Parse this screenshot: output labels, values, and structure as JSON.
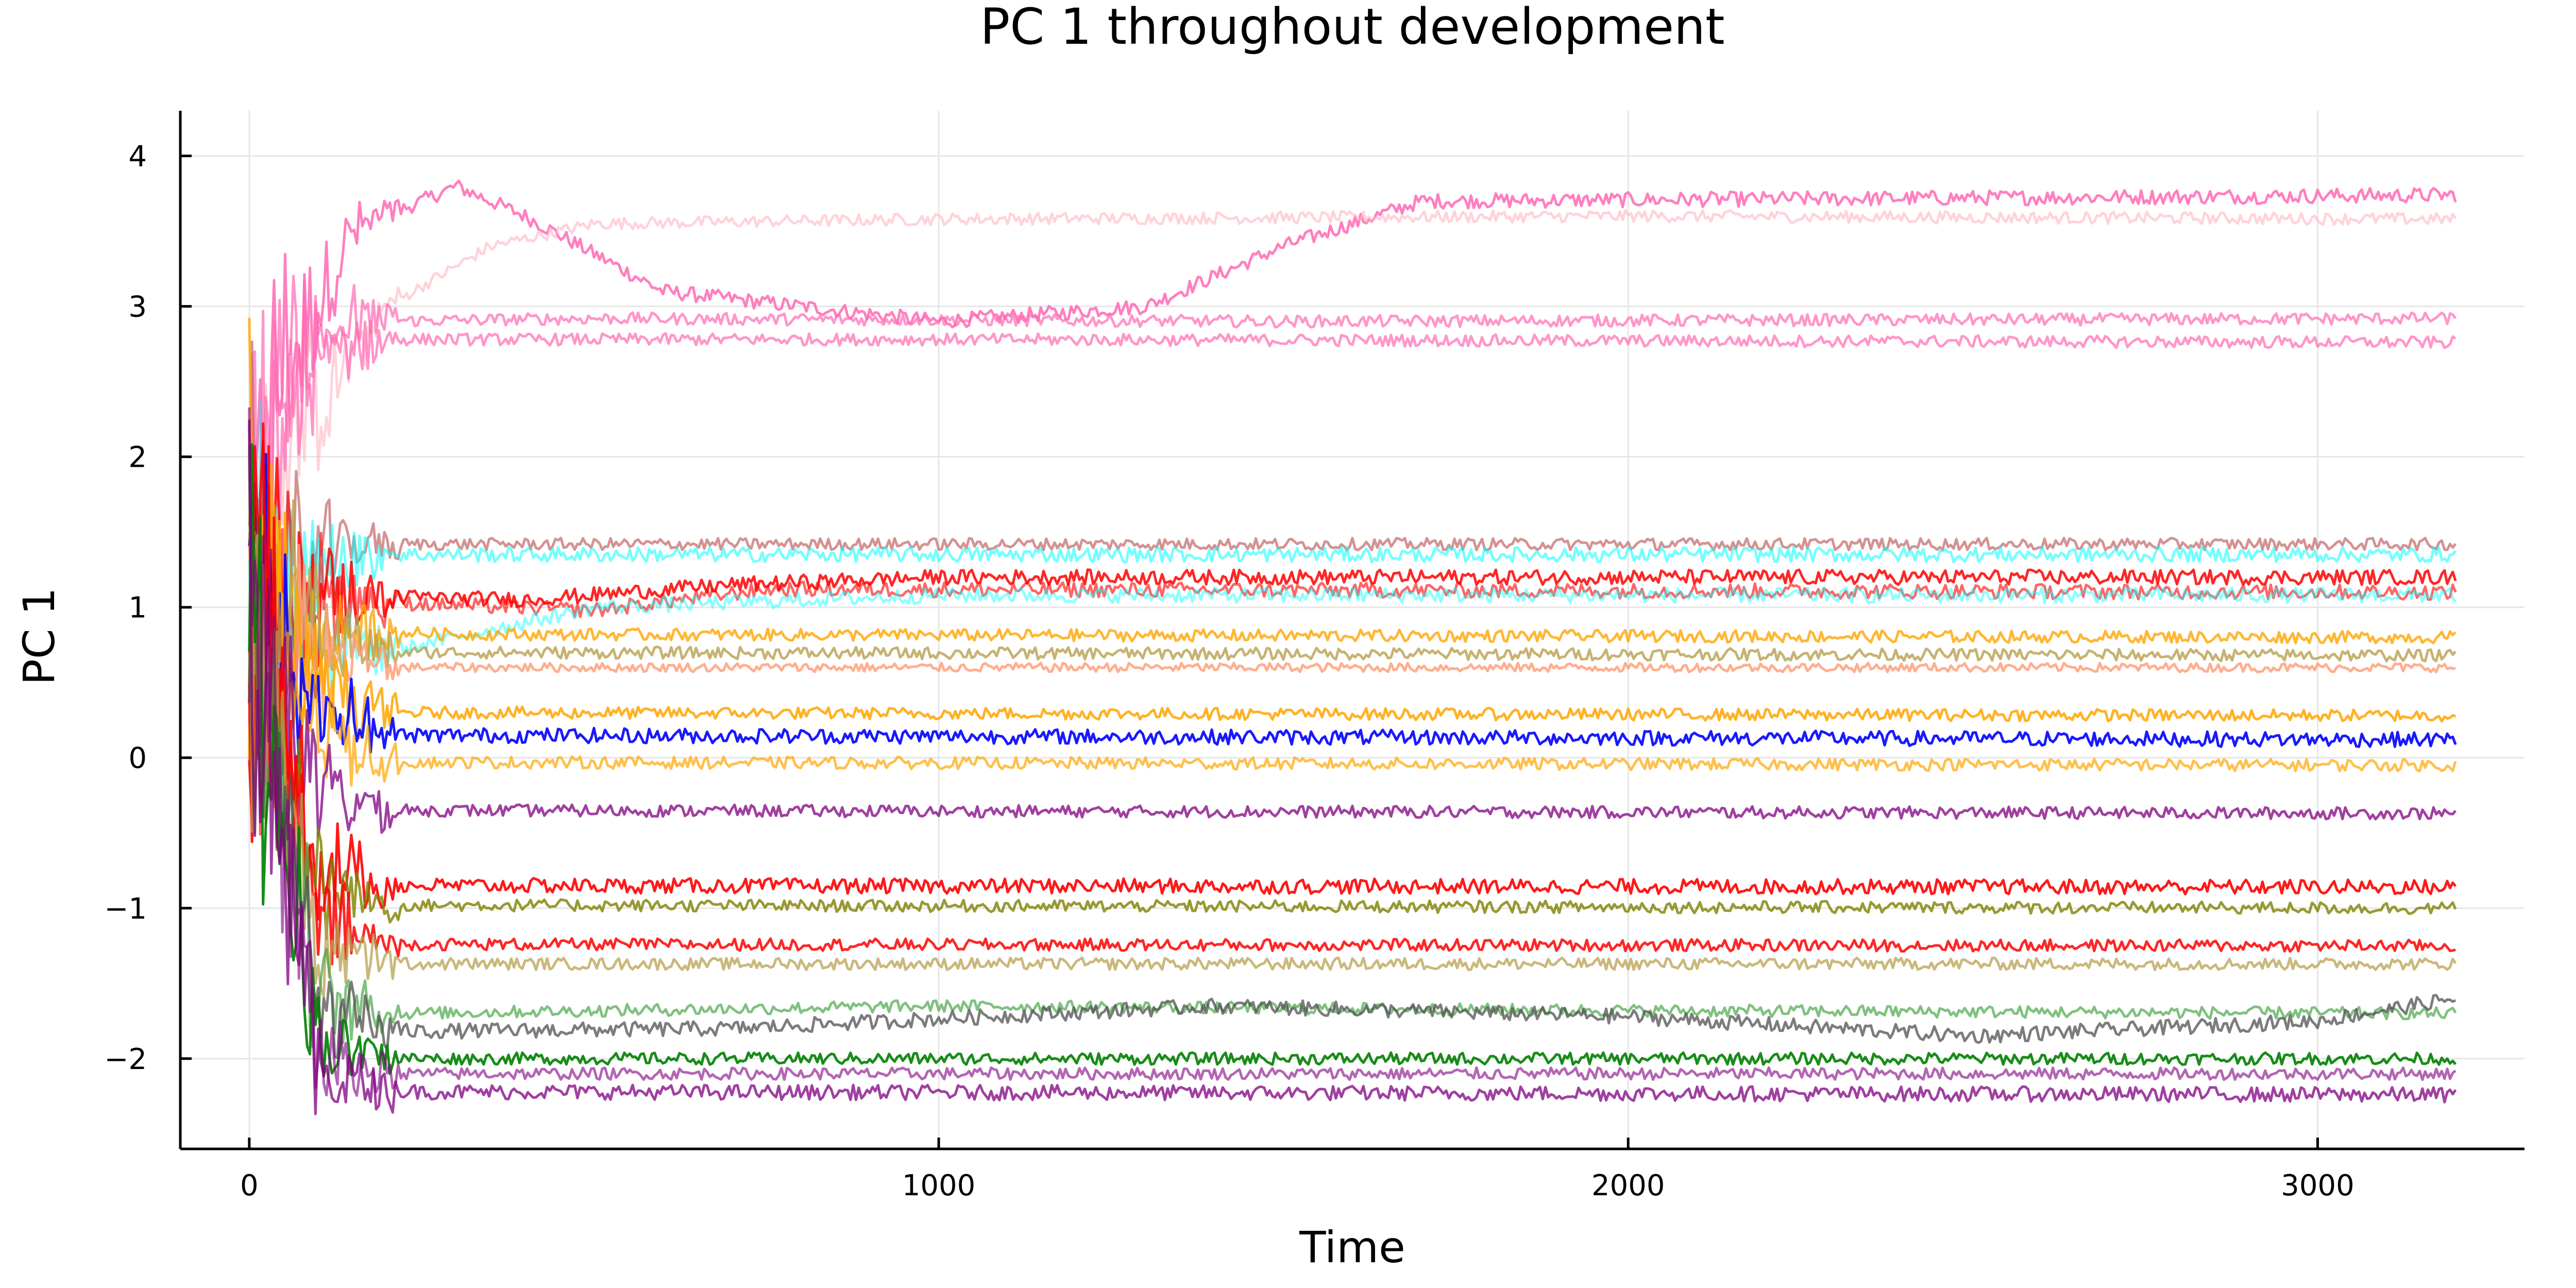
{
  "chart_data": {
    "type": "line",
    "title": "PC 1 throughout development",
    "xlabel": "Time",
    "ylabel": "PC 1",
    "xlim": [
      -100,
      3300
    ],
    "ylim": [
      -2.6,
      4.3
    ],
    "xticks": [
      0,
      1000,
      2000,
      3000
    ],
    "xtick_labels": [
      "0",
      "1000",
      "2000",
      "3000"
    ],
    "yticks": [
      -2,
      -1,
      0,
      1,
      2,
      3,
      4
    ],
    "ytick_labels": [
      "−2",
      "−1",
      "0",
      "1",
      "2",
      "3",
      "4"
    ],
    "grid": true,
    "legend": "none",
    "x_end": 3200,
    "series": [
      {
        "color": "#ff69b4",
        "opacity": 0.85,
        "noise": 0.05,
        "points": [
          [
            0,
            1.0
          ],
          [
            40,
            2.5
          ],
          [
            150,
            3.5
          ],
          [
            300,
            3.8
          ],
          [
            400,
            3.6
          ],
          [
            600,
            3.1
          ],
          [
            1000,
            2.9
          ],
          [
            1300,
            3.0
          ],
          [
            1500,
            3.4
          ],
          [
            1700,
            3.7
          ],
          [
            3200,
            3.74
          ]
        ]
      },
      {
        "color": "#ffb6c1",
        "opacity": 0.6,
        "noise": 0.04,
        "points": [
          [
            0,
            1.0
          ],
          [
            50,
            2.0
          ],
          [
            200,
            3.0
          ],
          [
            350,
            3.4
          ],
          [
            500,
            3.55
          ],
          [
            1000,
            3.58
          ],
          [
            2000,
            3.6
          ],
          [
            3200,
            3.58
          ]
        ]
      },
      {
        "color": "#ff69b4",
        "opacity": 0.7,
        "noise": 0.04,
        "points": [
          [
            0,
            1.0
          ],
          [
            60,
            2.6
          ],
          [
            150,
            2.9
          ],
          [
            500,
            2.92
          ],
          [
            1500,
            2.9
          ],
          [
            3200,
            2.92
          ]
        ]
      },
      {
        "color": "#ff69b4",
        "opacity": 0.7,
        "noise": 0.04,
        "points": [
          [
            0,
            1.0
          ],
          [
            60,
            2.5
          ],
          [
            150,
            2.78
          ],
          [
            1000,
            2.78
          ],
          [
            3200,
            2.76
          ]
        ]
      },
      {
        "color": "#c87878",
        "opacity": 0.8,
        "noise": 0.04,
        "points": [
          [
            0,
            1.0
          ],
          [
            80,
            1.3
          ],
          [
            150,
            1.42
          ],
          [
            3200,
            1.42
          ]
        ]
      },
      {
        "color": "#00ffff",
        "opacity": 0.55,
        "noise": 0.05,
        "points": [
          [
            0,
            1.0
          ],
          [
            80,
            1.2
          ],
          [
            150,
            1.35
          ],
          [
            3200,
            1.35
          ]
        ]
      },
      {
        "color": "#ff0000",
        "opacity": 0.85,
        "noise": 0.05,
        "points": [
          [
            0,
            1.0
          ],
          [
            100,
            1.08
          ],
          [
            400,
            1.05
          ],
          [
            700,
            1.15
          ],
          [
            1000,
            1.2
          ],
          [
            3200,
            1.2
          ]
        ]
      },
      {
        "color": "#ff0000",
        "opacity": 0.6,
        "noise": 0.05,
        "points": [
          [
            0,
            1.0
          ],
          [
            100,
            1.05
          ],
          [
            500,
            0.98
          ],
          [
            750,
            1.12
          ],
          [
            3200,
            1.1
          ]
        ]
      },
      {
        "color": "#00ffff",
        "opacity": 0.45,
        "noise": 0.05,
        "points": [
          [
            0,
            1.0
          ],
          [
            100,
            0.8
          ],
          [
            200,
            0.7
          ],
          [
            500,
            1.0
          ],
          [
            1000,
            1.08
          ],
          [
            3200,
            1.08
          ]
        ]
      },
      {
        "color": "#ffa500",
        "opacity": 0.8,
        "noise": 0.04,
        "points": [
          [
            0,
            1.0
          ],
          [
            100,
            0.85
          ],
          [
            300,
            0.82
          ],
          [
            3200,
            0.8
          ]
        ]
      },
      {
        "color": "#b8a050",
        "opacity": 0.8,
        "noise": 0.04,
        "points": [
          [
            0,
            1.0
          ],
          [
            80,
            0.9
          ],
          [
            200,
            0.7
          ],
          [
            3200,
            0.68
          ]
        ]
      },
      {
        "color": "#ffa07a",
        "opacity": 0.85,
        "noise": 0.03,
        "points": [
          [
            0,
            1.0
          ],
          [
            100,
            0.7
          ],
          [
            200,
            0.6
          ],
          [
            3200,
            0.6
          ]
        ]
      },
      {
        "color": "#ffa500",
        "opacity": 0.85,
        "noise": 0.04,
        "points": [
          [
            0,
            1.0
          ],
          [
            100,
            0.5
          ],
          [
            200,
            0.3
          ],
          [
            3200,
            0.28
          ]
        ]
      },
      {
        "color": "#0000ff",
        "opacity": 0.9,
        "noise": 0.05,
        "points": [
          [
            0,
            1.0
          ],
          [
            80,
            0.4
          ],
          [
            200,
            0.15
          ],
          [
            3200,
            0.12
          ]
        ]
      },
      {
        "color": "#ffa500",
        "opacity": 0.7,
        "noise": 0.04,
        "points": [
          [
            0,
            1.0
          ],
          [
            100,
            0.2
          ],
          [
            200,
            -0.03
          ],
          [
            3200,
            -0.05
          ]
        ]
      },
      {
        "color": "#800080",
        "opacity": 0.75,
        "noise": 0.04,
        "points": [
          [
            0,
            1.0
          ],
          [
            100,
            -0.2
          ],
          [
            200,
            -0.35
          ],
          [
            3200,
            -0.37
          ]
        ]
      },
      {
        "color": "#ff0000",
        "opacity": 0.9,
        "noise": 0.05,
        "points": [
          [
            0,
            1.0
          ],
          [
            100,
            -0.7
          ],
          [
            200,
            -0.85
          ],
          [
            3200,
            -0.86
          ]
        ]
      },
      {
        "color": "#808000",
        "opacity": 0.8,
        "noise": 0.04,
        "points": [
          [
            0,
            1.0
          ],
          [
            100,
            -0.85
          ],
          [
            200,
            -0.98
          ],
          [
            3200,
            -1.0
          ]
        ]
      },
      {
        "color": "#ff0000",
        "opacity": 0.85,
        "noise": 0.04,
        "points": [
          [
            0,
            1.0
          ],
          [
            100,
            -1.1
          ],
          [
            200,
            -1.24
          ],
          [
            3200,
            -1.25
          ]
        ]
      },
      {
        "color": "#b8a050",
        "opacity": 0.75,
        "noise": 0.04,
        "points": [
          [
            0,
            1.0
          ],
          [
            100,
            -1.25
          ],
          [
            200,
            -1.37
          ],
          [
            3200,
            -1.37
          ]
        ]
      },
      {
        "color": "#3ca03c",
        "opacity": 0.65,
        "noise": 0.04,
        "points": [
          [
            0,
            1.0
          ],
          [
            100,
            -1.6
          ],
          [
            200,
            -1.7
          ],
          [
            1000,
            -1.65
          ],
          [
            2000,
            -1.68
          ],
          [
            3200,
            -1.7
          ]
        ]
      },
      {
        "color": "#505050",
        "opacity": 0.75,
        "noise": 0.05,
        "points": [
          [
            0,
            1.0
          ],
          [
            100,
            -1.7
          ],
          [
            200,
            -1.82
          ],
          [
            700,
            -1.8
          ],
          [
            1400,
            -1.65
          ],
          [
            2000,
            -1.72
          ],
          [
            2500,
            -1.85
          ],
          [
            3000,
            -1.75
          ],
          [
            3200,
            -1.6
          ]
        ]
      },
      {
        "color": "#008000",
        "opacity": 0.9,
        "noise": 0.04,
        "points": [
          [
            0,
            1.0
          ],
          [
            100,
            -1.9
          ],
          [
            200,
            -2.0
          ],
          [
            3200,
            -2.0
          ]
        ]
      },
      {
        "color": "#800080",
        "opacity": 0.6,
        "noise": 0.04,
        "points": [
          [
            0,
            1.0
          ],
          [
            100,
            -2.0
          ],
          [
            200,
            -2.1
          ],
          [
            3200,
            -2.1
          ]
        ]
      },
      {
        "color": "#800080",
        "opacity": 0.75,
        "noise": 0.05,
        "points": [
          [
            0,
            1.0
          ],
          [
            100,
            -2.1
          ],
          [
            200,
            -2.22
          ],
          [
            3200,
            -2.24
          ]
        ]
      }
    ]
  }
}
